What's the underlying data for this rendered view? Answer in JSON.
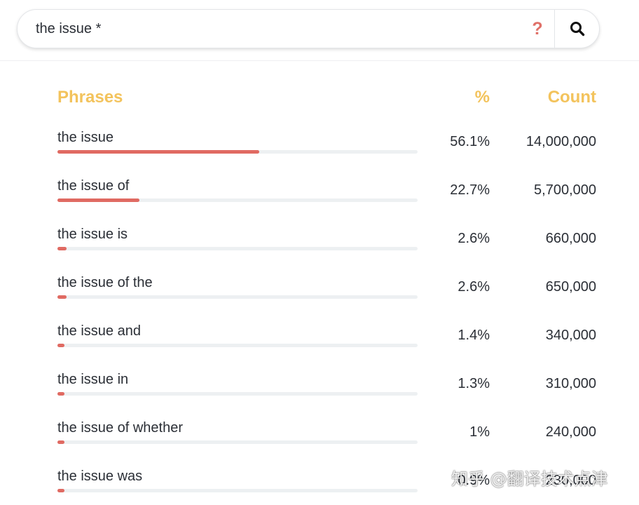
{
  "search": {
    "query": "the issue *",
    "help_label": "?"
  },
  "table": {
    "headers": {
      "phrases": "Phrases",
      "percent": "%",
      "count": "Count"
    },
    "rows": [
      {
        "phrase": "the issue",
        "percent": "56.1%",
        "count": "14,000,000",
        "share": 0.561
      },
      {
        "phrase": "the issue of",
        "percent": "22.7%",
        "count": "5,700,000",
        "share": 0.227
      },
      {
        "phrase": "the issue is",
        "percent": "2.6%",
        "count": "660,000",
        "share": 0.026
      },
      {
        "phrase": "the issue of the",
        "percent": "2.6%",
        "count": "650,000",
        "share": 0.026
      },
      {
        "phrase": "the issue and",
        "percent": "1.4%",
        "count": "340,000",
        "share": 0.014
      },
      {
        "phrase": "the issue in",
        "percent": "1.3%",
        "count": "310,000",
        "share": 0.013
      },
      {
        "phrase": "the issue of whether",
        "percent": "1%",
        "count": "240,000",
        "share": 0.01
      },
      {
        "phrase": "the issue was",
        "percent": "0.9%",
        "count": "230,000",
        "share": 0.009
      }
    ]
  },
  "watermark": "知乎 @翻译技术点津",
  "colors": {
    "header": "#f3c35c",
    "bar_fill": "#e06a62",
    "bar_track": "#edf0f2",
    "help_icon": "#e07068"
  }
}
